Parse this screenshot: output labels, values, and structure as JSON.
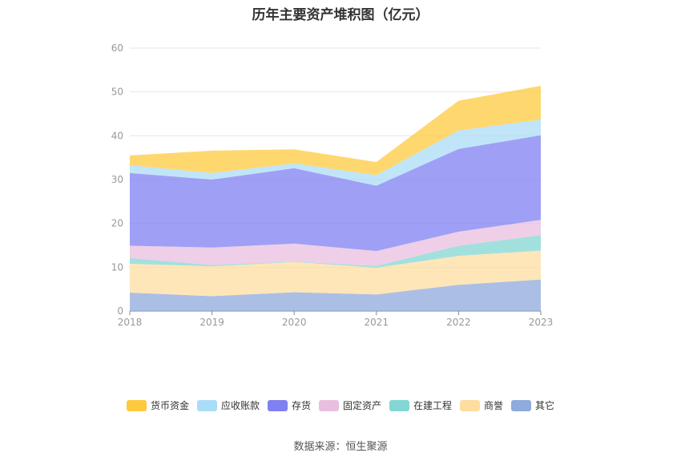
{
  "title": "历年主要资产堆积图（亿元）",
  "source": "数据来源：恒生聚源",
  "chart_data": {
    "type": "area",
    "stacked": true,
    "x": [
      "2018",
      "2019",
      "2020",
      "2021",
      "2022",
      "2023"
    ],
    "ylim": [
      0,
      60
    ],
    "yticks": [
      0,
      10,
      20,
      30,
      40,
      50,
      60
    ],
    "grid": true,
    "legend_position": "bottom",
    "series": [
      {
        "name": "其它",
        "color": "#8faadc",
        "values": [
          4.2,
          3.4,
          4.3,
          3.8,
          6.0,
          7.2
        ]
      },
      {
        "name": "商誉",
        "color": "#fddea0",
        "values": [
          6.6,
          6.8,
          6.9,
          6.1,
          6.6,
          6.6
        ]
      },
      {
        "name": "在建工程",
        "color": "#83d6d3",
        "values": [
          1.3,
          0.3,
          0.1,
          0.4,
          2.3,
          3.5
        ]
      },
      {
        "name": "固定资产",
        "color": "#e8bfdf",
        "values": [
          2.8,
          4.0,
          4.1,
          3.4,
          3.2,
          3.5
        ]
      },
      {
        "name": "存货",
        "color": "#7f80f2",
        "values": [
          16.6,
          15.5,
          17.2,
          14.9,
          18.9,
          19.3
        ]
      },
      {
        "name": "应收账款",
        "color": "#abdcf7",
        "values": [
          1.8,
          1.5,
          1.1,
          2.4,
          4.2,
          3.6
        ]
      },
      {
        "name": "货币资金",
        "color": "#ffc93f",
        "values": [
          2.2,
          5.1,
          3.2,
          3.0,
          6.8,
          7.7
        ]
      }
    ],
    "legend": [
      {
        "name": "货币资金",
        "color": "#ffc93f"
      },
      {
        "name": "应收账款",
        "color": "#abdcf7"
      },
      {
        "name": "存货",
        "color": "#7f80f2"
      },
      {
        "name": "固定资产",
        "color": "#e8bfdf"
      },
      {
        "name": "在建工程",
        "color": "#83d6d3"
      },
      {
        "name": "商誉",
        "color": "#fddea0"
      },
      {
        "name": "其它",
        "color": "#8faadc"
      }
    ]
  }
}
